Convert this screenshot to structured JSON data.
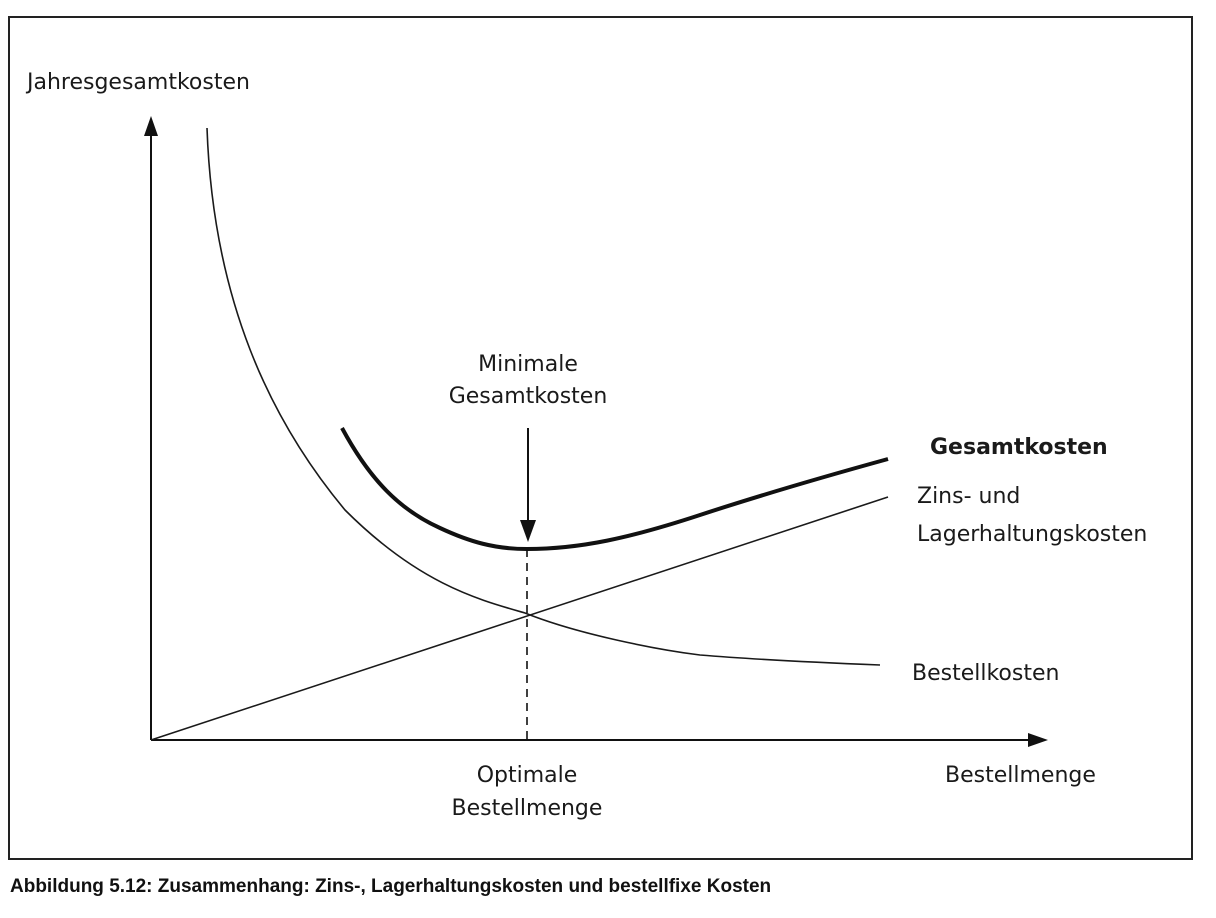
{
  "diagram": {
    "y_axis_label": "Jahresgesamtkosten",
    "x_axis_label": "Bestellmenge",
    "minimum_annotation": {
      "line1": "Minimale",
      "line2": "Gesamtkosten"
    },
    "optimum_annotation": {
      "line1": "Optimale",
      "line2": "Bestellmenge"
    },
    "series": [
      {
        "name": "Gesamtkosten",
        "emphasis": "bold"
      },
      {
        "name_line1": "Zins- und",
        "name_line2": "Lagerhaltungskosten"
      },
      {
        "name": "Bestellkosten"
      }
    ]
  },
  "caption": "Abbildung 5.12: Zusammenhang: Zins-, Lagerhaltungskosten und bestellfixe Kosten"
}
